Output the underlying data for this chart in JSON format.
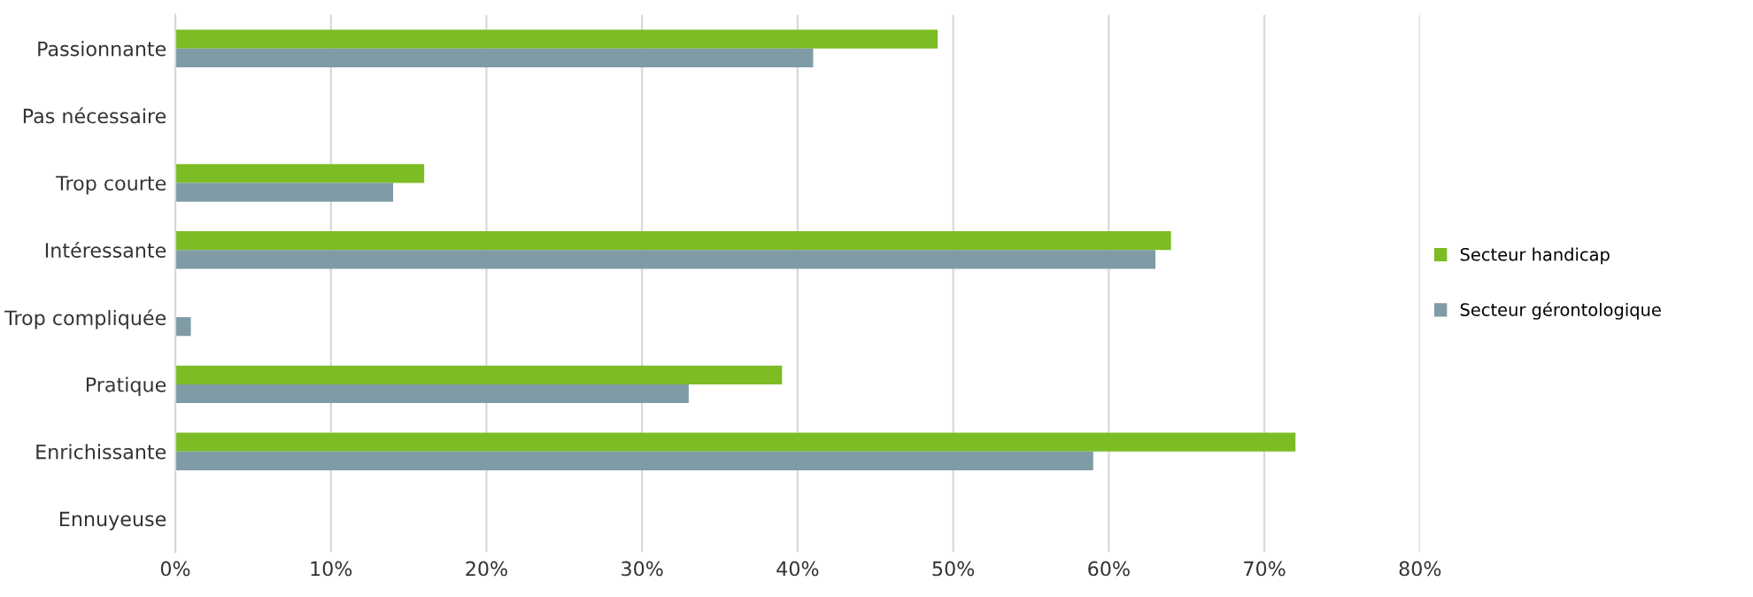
{
  "chart_data": {
    "type": "bar",
    "orientation": "horizontal",
    "categories": [
      "Passionnante",
      "Pas nécessaire",
      "Trop courte",
      "Intéressante",
      "Trop compliquée",
      "Pratique",
      "Enrichissante",
      "Ennuyeuse"
    ],
    "series": [
      {
        "name": "Secteur handicap",
        "color": "#7cbc24",
        "values": [
          49,
          null,
          16,
          64,
          null,
          39,
          72,
          null
        ]
      },
      {
        "name": "Secteur gérontologique",
        "color": "#7f9ca6",
        "values": [
          41,
          null,
          14,
          63,
          1,
          33,
          59,
          null
        ]
      }
    ],
    "xlim": [
      0,
      80
    ],
    "xticks": [
      {
        "value": 0,
        "label": "0%"
      },
      {
        "value": 10,
        "label": "10%"
      },
      {
        "value": 20,
        "label": "20%"
      },
      {
        "value": 30,
        "label": "30%"
      },
      {
        "value": 40,
        "label": "40%"
      },
      {
        "value": 50,
        "label": "50%"
      },
      {
        "value": 60,
        "label": "60%"
      },
      {
        "value": 70,
        "label": "70%"
      },
      {
        "value": 80,
        "label": "80%"
      }
    ],
    "grid": "x",
    "legend": "right"
  }
}
